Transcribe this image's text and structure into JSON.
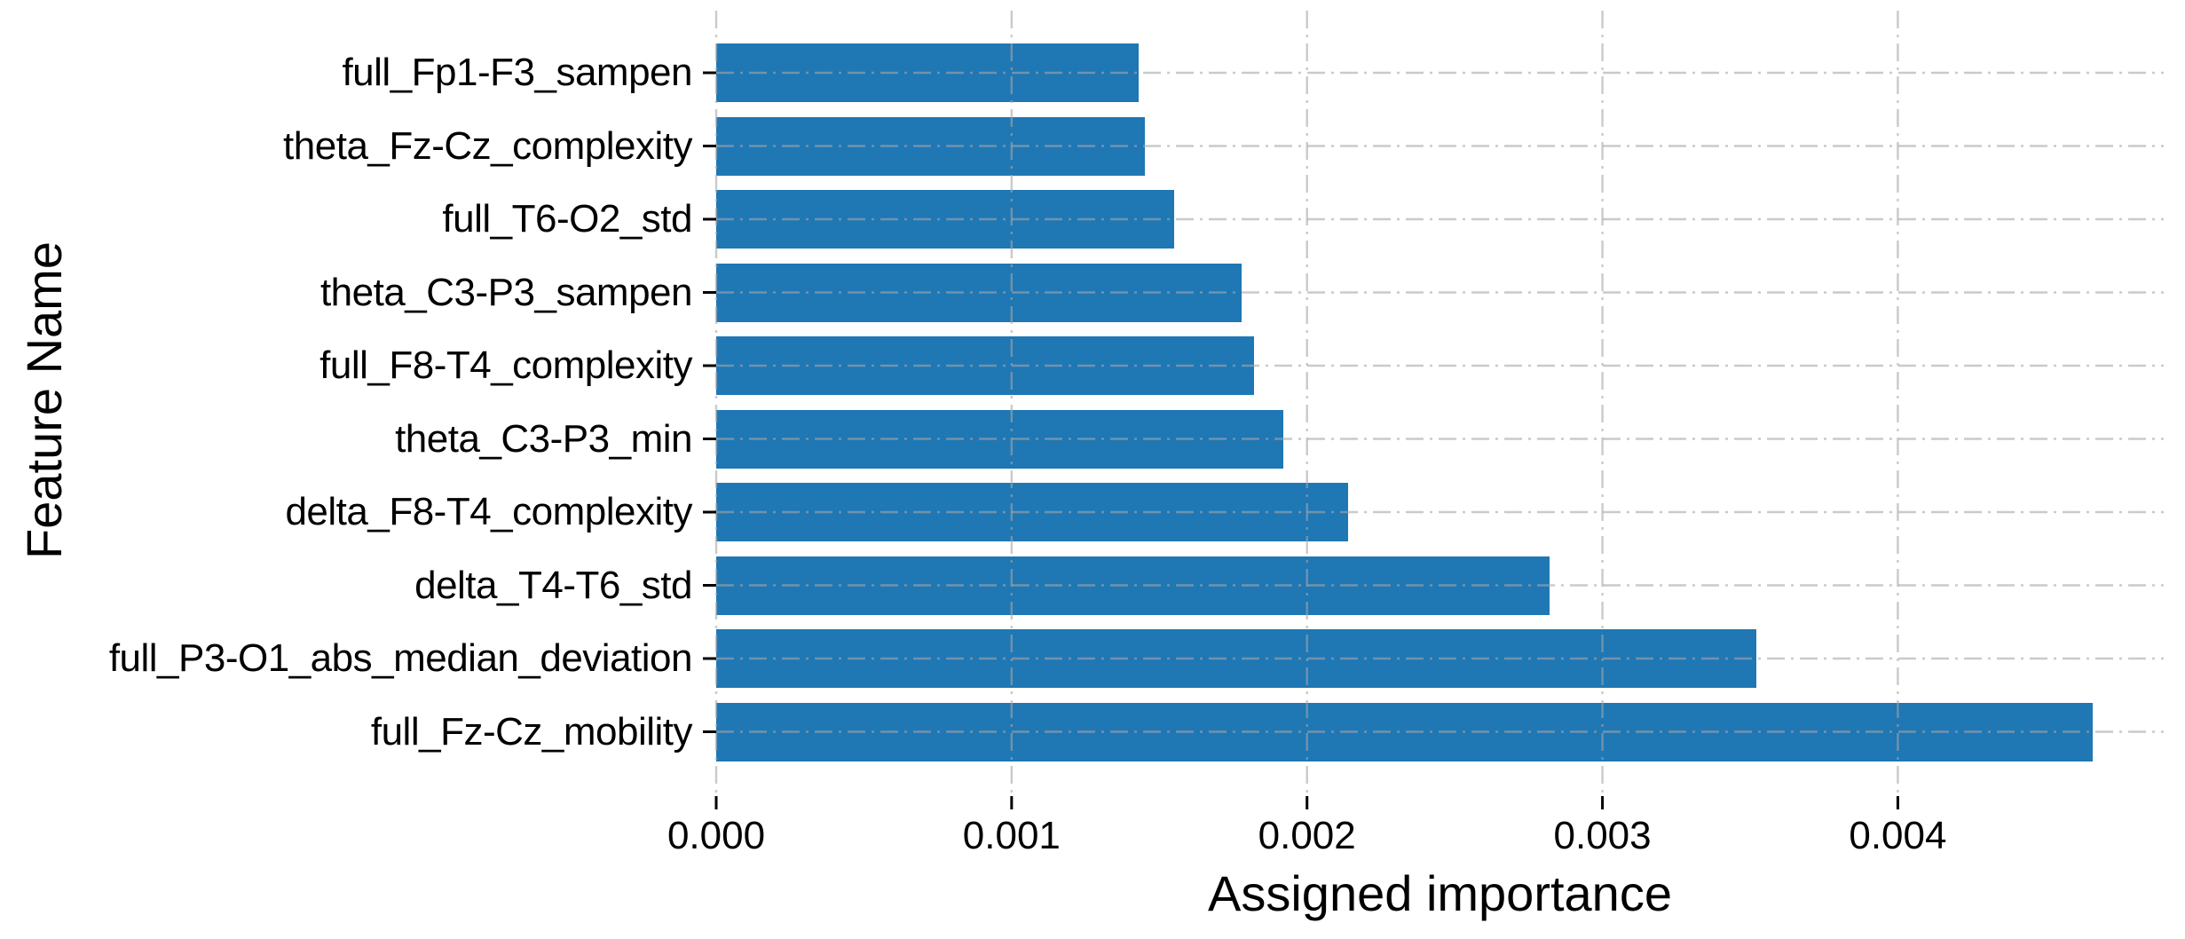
{
  "figure": {
    "background": "#ffffff",
    "text_color": "#000000"
  },
  "chart_data": {
    "type": "bar",
    "orientation": "horizontal",
    "title": "",
    "xlabel": "Assigned importance",
    "ylabel": "Feature Name",
    "categories": [
      "full_Fp1-F3_sampen",
      "theta_Fz-Cz_complexity",
      "full_T6-O2_std",
      "theta_C3-P3_sampen",
      "full_F8-T4_complexity",
      "theta_C3-P3_min",
      "delta_F8-T4_complexity",
      "delta_T4-T6_std",
      "full_P3-O1_abs_median_deviation",
      "full_Fz-Cz_mobility"
    ],
    "values": [
      0.00143,
      0.00145,
      0.00155,
      0.00178,
      0.00182,
      0.00192,
      0.00214,
      0.00282,
      0.00352,
      0.00466
    ],
    "xlim": [
      0,
      0.0049
    ],
    "xticks": [
      0,
      0.001,
      0.002,
      0.003,
      0.004
    ],
    "xtick_labels": [
      "0.000",
      "0.001",
      "0.002",
      "0.003",
      "0.004"
    ],
    "bar_color": "#1f77b4",
    "grid": {
      "visible": true,
      "axis": "both",
      "style": "dash-dot",
      "color": "#a6a6a6",
      "above_bars": true
    },
    "legend": null
  }
}
